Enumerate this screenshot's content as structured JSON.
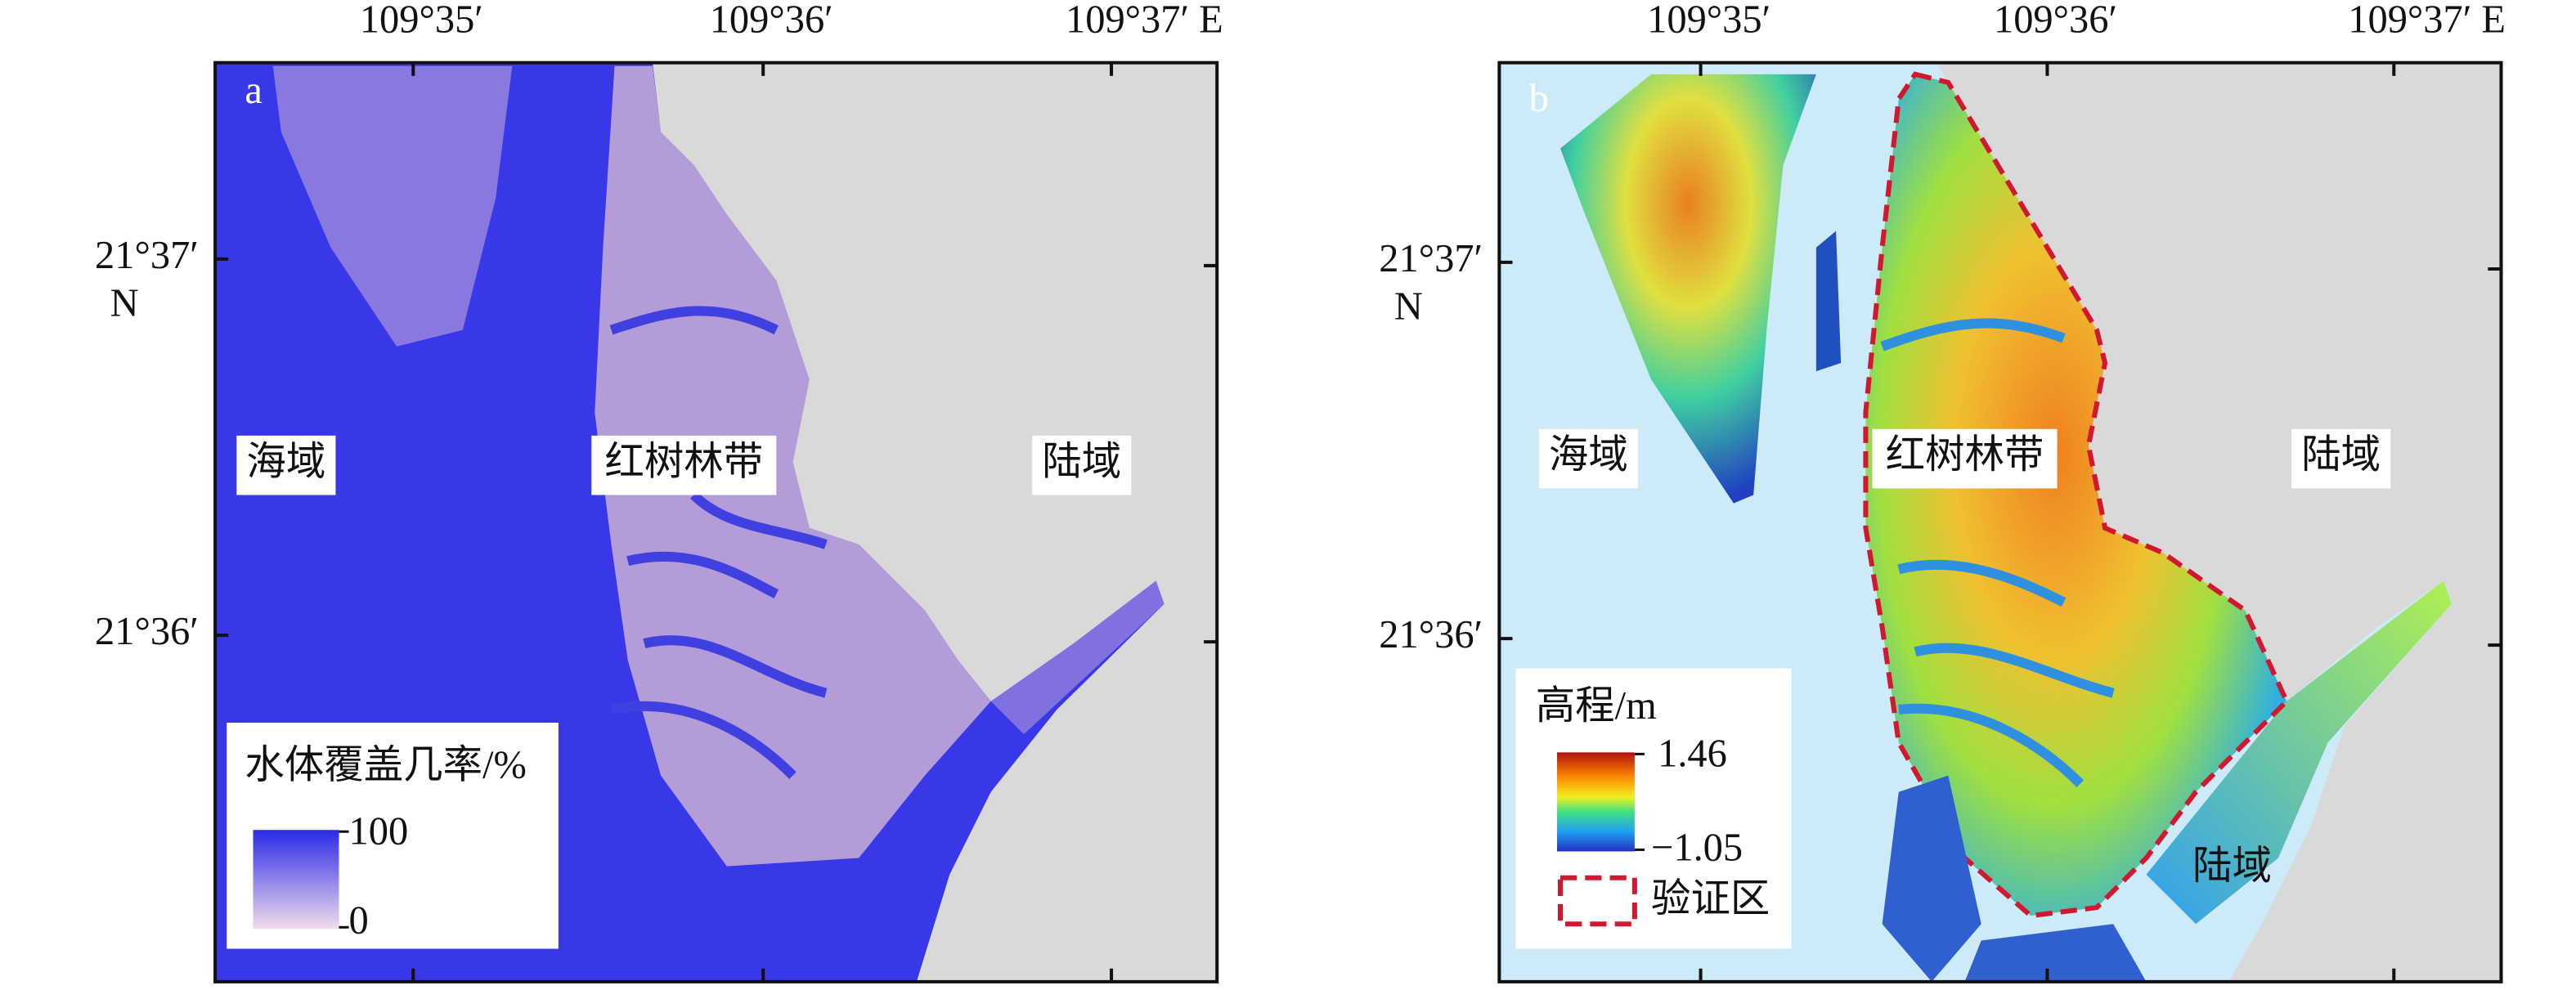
{
  "panels": [
    {
      "label": "a",
      "x_labels": [
        "109°35′",
        "109°36′",
        "109°37′ E"
      ],
      "y_labels": [
        "21°37′",
        "21°36′"
      ],
      "y_hemisphere": "N",
      "regions": [
        "海域",
        "红树林带",
        "陆域"
      ],
      "legend": {
        "title": "水体覆盖几率/%",
        "max": "100",
        "min": "0"
      }
    },
    {
      "label": "b",
      "x_labels": [
        "109°35′",
        "109°36′",
        "109°37′ E"
      ],
      "y_labels": [
        "21°37′",
        "21°36′"
      ],
      "y_hemisphere": "N",
      "regions": [
        "海域",
        "红树林带",
        "陆域",
        "陆域"
      ],
      "legend": {
        "title": "高程/m",
        "max": "1.46",
        "min": "−1.05",
        "boundary": "验证区"
      }
    }
  ]
}
